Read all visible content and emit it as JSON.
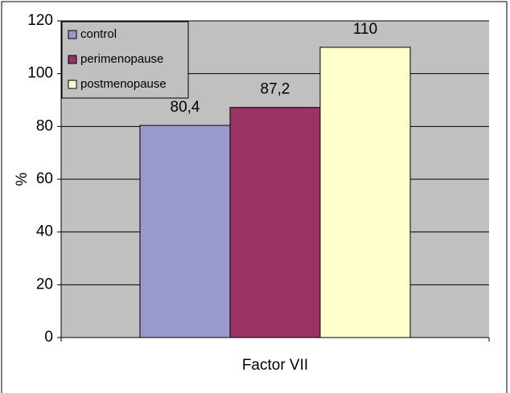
{
  "chart_data": {
    "type": "bar",
    "y_label": "%",
    "categories": [
      "Factor VII"
    ],
    "series": [
      {
        "name": "control",
        "color": "#9999cc",
        "values": [
          80.4
        ],
        "value_labels": [
          "80,4"
        ]
      },
      {
        "name": "perimenopause",
        "color": "#993366",
        "values": [
          87.2
        ],
        "value_labels": [
          "87,2"
        ]
      },
      {
        "name": "postmenopause",
        "color": "#ffffcc",
        "values": [
          110
        ],
        "value_labels": [
          "110"
        ]
      }
    ],
    "ylim": [
      0,
      120
    ],
    "yticks": [
      0,
      20,
      40,
      60,
      80,
      100,
      120
    ],
    "grid": true,
    "legend": "top-left"
  }
}
